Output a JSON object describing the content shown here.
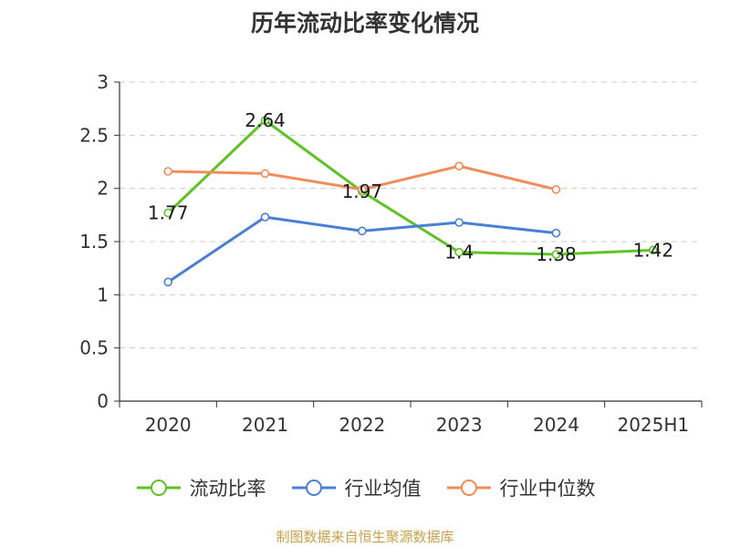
{
  "chart_data": {
    "type": "line",
    "title": "历年流动比率变化情况",
    "categories": [
      "2020",
      "2021",
      "2022",
      "2023",
      "2024",
      "2025H1"
    ],
    "ylim": [
      0,
      3
    ],
    "yticks": [
      "0",
      "0.5",
      "1",
      "1.5",
      "2",
      "2.5",
      "3"
    ],
    "grid": true,
    "legend_position": "bottom",
    "series": [
      {
        "name": "流动比率",
        "color": "#5fc225",
        "values": [
          1.77,
          2.64,
          1.97,
          1.4,
          1.38,
          1.42
        ],
        "labels": [
          "1.77",
          "2.64",
          "1.97",
          "1.4",
          "1.38",
          "1.42"
        ]
      },
      {
        "name": "行业均值",
        "color": "#4a7fd6",
        "values": [
          1.12,
          1.73,
          1.6,
          1.68,
          1.58,
          null
        ]
      },
      {
        "name": "行业中位数",
        "color": "#f28c5a",
        "values": [
          2.16,
          2.14,
          1.99,
          2.21,
          1.99,
          null
        ]
      }
    ]
  },
  "source": "制图数据来自恒生聚源数据库"
}
